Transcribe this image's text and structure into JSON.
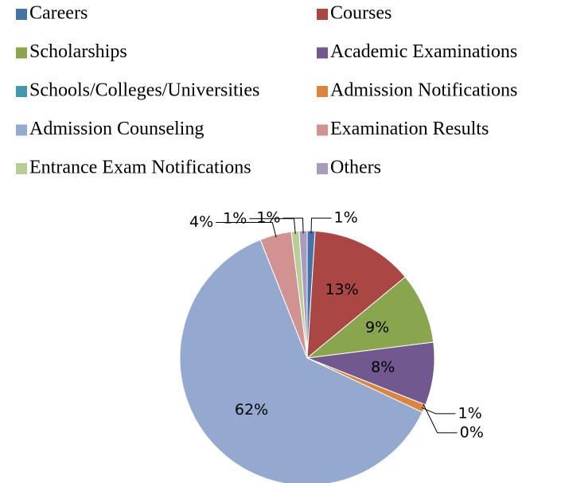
{
  "chart_data": {
    "type": "pie",
    "categories": [
      "Careers",
      "Courses",
      "Scholarships",
      "Academic Examinations",
      "Schools/Colleges/Universities",
      "Admission Notifications",
      "Admission Counseling",
      "Examination Results",
      "Entrance Exam Notifications",
      "Others"
    ],
    "values": [
      1,
      13,
      9,
      8,
      0,
      1,
      62,
      4,
      1,
      1
    ],
    "value_labels": [
      "1%",
      "13%",
      "9%",
      "8%",
      "0%",
      "1%",
      "62%",
      "4%",
      "1%",
      "1%"
    ],
    "colors": [
      "#4572a7",
      "#aa4643",
      "#89a54e",
      "#71588f",
      "#4198af",
      "#db843d",
      "#93a9cf",
      "#d19392",
      "#b9cd96",
      "#a99bbd"
    ],
    "legend": "top"
  }
}
